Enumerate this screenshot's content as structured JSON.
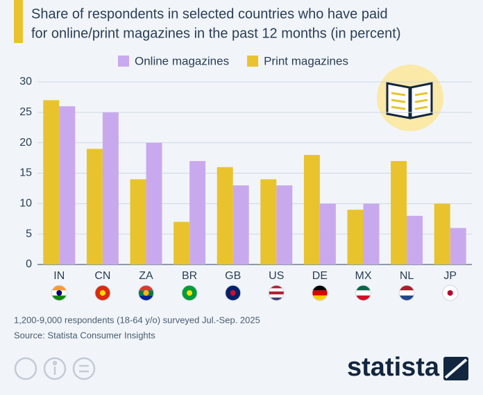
{
  "chart_data": {
    "type": "bar",
    "title_lines": [
      "Share of respondents in selected countries who have paid",
      "for online/print magazines in the past 12 months (in percent)"
    ],
    "categories": [
      "IN",
      "CN",
      "ZA",
      "BR",
      "GB",
      "US",
      "DE",
      "MX",
      "NL",
      "JP"
    ],
    "series": [
      {
        "name": "Online magazines",
        "color": "#c9a9ee",
        "values": [
          26,
          25,
          20,
          17,
          13,
          13,
          10,
          10,
          8,
          6
        ]
      },
      {
        "name": "Print magazines",
        "color": "#e8c32e",
        "values": [
          27,
          19,
          14,
          7,
          16,
          14,
          18,
          9,
          17,
          10
        ]
      }
    ],
    "ylim": [
      0,
      30
    ],
    "yticks": [
      0,
      5,
      10,
      15,
      20,
      25,
      30
    ],
    "grid": true,
    "note": "1,200-9,000 respondents (18-64 y/o) surveyed Jul.-Sep. 2025",
    "source": "Source: Statista Consumer Insights",
    "brand": "statista"
  }
}
